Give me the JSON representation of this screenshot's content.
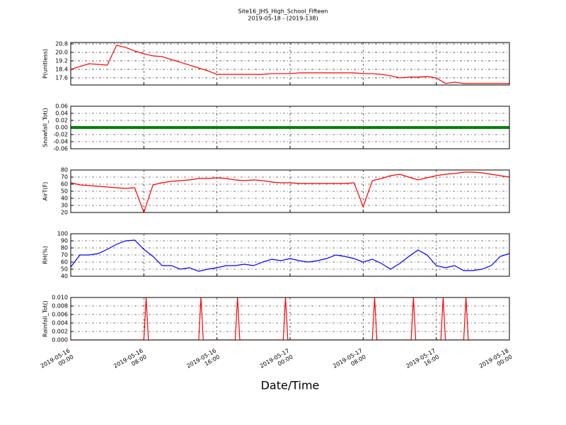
{
  "figure": {
    "title": "Site16_JHS_High_School_Fifteen",
    "subtitle": "2019-05-18 - (2019-138)",
    "xlabel": "Date/Time",
    "xlim": [
      "2019-05-16 00:00",
      "2019-05-18 00:00"
    ],
    "xticks": [
      "2019-05-16 00:00",
      "2019-05-16 08:00",
      "2019-05-16 16:00",
      "2019-05-17 00:00",
      "2019-05-17 08:00",
      "2019-05-17 16:00",
      "2019-05-18 00:00"
    ],
    "x": [
      "2019-05-16 00:00",
      "2019-05-16 01:00",
      "2019-05-16 02:00",
      "2019-05-16 03:00",
      "2019-05-16 04:00",
      "2019-05-16 05:00",
      "2019-05-16 06:00",
      "2019-05-16 07:00",
      "2019-05-16 08:00",
      "2019-05-16 09:00",
      "2019-05-16 10:00",
      "2019-05-16 11:00",
      "2019-05-16 12:00",
      "2019-05-16 13:00",
      "2019-05-16 14:00",
      "2019-05-16 15:00",
      "2019-05-16 16:00",
      "2019-05-16 17:00",
      "2019-05-16 18:00",
      "2019-05-16 19:00",
      "2019-05-16 20:00",
      "2019-05-16 21:00",
      "2019-05-16 22:00",
      "2019-05-16 23:00",
      "2019-05-17 00:00",
      "2019-05-17 01:00",
      "2019-05-17 02:00",
      "2019-05-17 03:00",
      "2019-05-17 04:00",
      "2019-05-17 05:00",
      "2019-05-17 06:00",
      "2019-05-17 07:00",
      "2019-05-17 08:00",
      "2019-05-17 09:00",
      "2019-05-17 10:00",
      "2019-05-17 11:00",
      "2019-05-17 12:00",
      "2019-05-17 13:00",
      "2019-05-17 14:00",
      "2019-05-17 15:00",
      "2019-05-17 16:00",
      "2019-05-17 17:00",
      "2019-05-17 18:00",
      "2019-05-17 19:00",
      "2019-05-17 20:00",
      "2019-05-17 21:00",
      "2019-05-17 22:00",
      "2019-05-17 23:00",
      "2019-05-18 00:00"
    ]
  },
  "chart_data": [
    {
      "type": "line",
      "ylabel": "P(unitless)",
      "color": "#ff0000",
      "grid": true,
      "ylim": [
        16.93,
        20.93
      ],
      "yticks": [
        17.6,
        18.4,
        19.2,
        {
          "value": 20,
          "label": "20.0"
        },
        20.8
      ],
      "values": [
        18.4,
        18.67,
        18.93,
        18.87,
        18.8,
        20.67,
        20.47,
        20.13,
        19.87,
        19.67,
        19.6,
        19.33,
        19.07,
        18.8,
        18.53,
        18.27,
        17.93,
        17.93,
        17.93,
        17.93,
        17.93,
        17.93,
        18.0,
        18.0,
        18.0,
        18.07,
        18.07,
        18.07,
        18.07,
        18.07,
        18.07,
        18.07,
        18.0,
        18.0,
        17.93,
        17.8,
        17.6,
        17.67,
        17.67,
        17.73,
        17.6,
        17.07,
        17.2,
        17.07,
        17.07,
        17.07,
        17.07,
        17.07,
        17.07
      ]
    },
    {
      "type": "line",
      "ylabel": "Snowfall_Tot()",
      "color": "#008000",
      "grid": true,
      "ylim": [
        -0.06,
        0.06
      ],
      "yticks": [
        -0.06,
        -0.04,
        -0.02,
        {
          "value": 0,
          "label": "0.00"
        },
        0.02,
        0.04,
        0.06
      ],
      "values": [
        0,
        0,
        0,
        0,
        0,
        0,
        0,
        0,
        0,
        0,
        0,
        0,
        0,
        0,
        0,
        0,
        0,
        0,
        0,
        0,
        0,
        0,
        0,
        0,
        0,
        0,
        0,
        0,
        0,
        0,
        0,
        0,
        0,
        0,
        0,
        0,
        0,
        0,
        0,
        0,
        0,
        0,
        0,
        0,
        0,
        0,
        0,
        0,
        0
      ]
    },
    {
      "type": "line",
      "ylabel": "AirT(F)",
      "color": "#ff0000",
      "grid": true,
      "ylim": [
        20,
        80
      ],
      "yticks": [
        20,
        30,
        40,
        50,
        60,
        70,
        80
      ],
      "values": [
        62,
        59,
        58,
        57,
        56,
        55,
        54,
        55,
        20,
        59,
        62,
        64,
        65,
        66,
        68,
        68,
        69,
        68,
        66,
        65,
        66,
        65,
        63,
        62,
        62,
        61,
        61,
        61,
        61,
        61,
        61,
        62,
        28,
        65,
        68,
        72,
        74,
        70,
        66,
        69,
        72,
        74,
        75,
        77,
        77,
        76,
        74,
        72,
        70
      ]
    },
    {
      "type": "line",
      "ylabel": "RH(%)",
      "color": "#0000ff",
      "grid": true,
      "ylim": [
        40,
        100
      ],
      "yticks": [
        40,
        50,
        60,
        70,
        80,
        90,
        100
      ],
      "values": [
        53,
        70,
        70,
        72,
        78,
        85,
        90,
        91,
        78,
        68,
        55,
        55,
        50,
        52,
        47,
        50,
        52,
        55,
        55,
        57,
        55,
        60,
        64,
        62,
        65,
        62,
        60,
        62,
        65,
        70,
        68,
        65,
        60,
        64,
        58,
        50,
        58,
        68,
        77,
        70,
        55,
        52,
        55,
        48,
        48,
        50,
        55,
        68,
        72
      ]
    },
    {
      "type": "line",
      "ylabel": "Rainfall_Tot()",
      "color": "#ff0000",
      "grid": true,
      "ylim": [
        0,
        0.01
      ],
      "yticks": [
        {
          "value": 0,
          "label": "0.000"
        },
        {
          "value": 0.002,
          "label": "0.002"
        },
        {
          "value": 0.004,
          "label": "0.004"
        },
        {
          "value": 0.006,
          "label": "0.006"
        },
        {
          "value": 0.008,
          "label": "0.008"
        },
        {
          "value": 0.01,
          "label": "0.010"
        }
      ],
      "x": [
        "2019-05-16 00:00",
        "2019-05-16 08:00",
        "2019-05-16 08:15",
        "2019-05-16 08:30",
        "2019-05-16 14:00",
        "2019-05-16 14:15",
        "2019-05-16 14:30",
        "2019-05-16 18:00",
        "2019-05-16 18:15",
        "2019-05-16 18:30",
        "2019-05-16 23:15",
        "2019-05-16 23:30",
        "2019-05-16 23:45",
        "2019-05-17 09:00",
        "2019-05-17 09:15",
        "2019-05-17 09:30",
        "2019-05-17 13:15",
        "2019-05-17 13:30",
        "2019-05-17 13:45",
        "2019-05-17 16:30",
        "2019-05-17 16:45",
        "2019-05-17 17:00",
        "2019-05-17 19:00",
        "2019-05-17 19:15",
        "2019-05-17 19:30",
        "2019-05-18 00:00"
      ],
      "values": [
        0,
        0,
        0.01,
        0,
        0,
        0.01,
        0,
        0,
        0.01,
        0,
        0,
        0.01,
        0,
        0,
        0.01,
        0,
        0,
        0.01,
        0,
        0,
        0.01,
        0,
        0,
        0.01,
        0,
        0
      ]
    }
  ]
}
